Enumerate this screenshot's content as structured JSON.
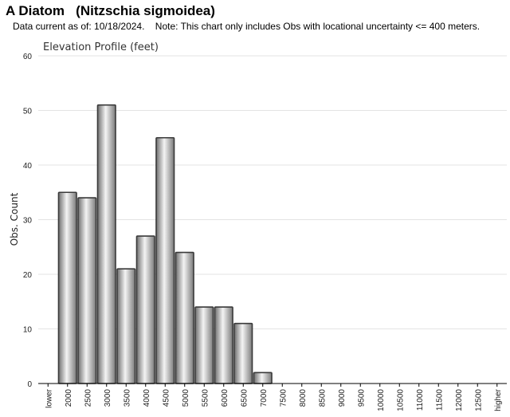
{
  "page": {
    "title": "A Diatom   (Nitzschia sigmoidea)",
    "subtitle": "Data current as of: 10/18/2024.    Note: This chart only includes Obs with locational uncertainty <= 400 meters."
  },
  "chart_data": {
    "type": "bar",
    "title": "Elevation Profile (feet)",
    "xlabel": "",
    "ylabel": "Obs. Count",
    "ylim": [
      0,
      60
    ],
    "yticks": [
      0,
      10,
      20,
      30,
      40,
      50,
      60
    ],
    "grid": true,
    "legend": "none",
    "categories": [
      "lower",
      "2000",
      "2500",
      "3000",
      "3500",
      "4000",
      "4500",
      "5000",
      "5500",
      "6000",
      "6500",
      "7000",
      "7500",
      "8000",
      "8500",
      "9000",
      "9500",
      "10000",
      "10500",
      "11000",
      "11500",
      "12000",
      "12500",
      "higher"
    ],
    "values": [
      0,
      35,
      34,
      51,
      21,
      27,
      45,
      24,
      14,
      14,
      11,
      2,
      0,
      0,
      0,
      0,
      0,
      0,
      0,
      0,
      0,
      0,
      0,
      0
    ],
    "colors": {
      "bar_edge": "#3a3a3a",
      "bar_mid": "#f2f2f2",
      "bar_dark": "#7a7a7a",
      "grid": "#e3e3e3",
      "axis": "#000000",
      "text": "#333333"
    }
  }
}
